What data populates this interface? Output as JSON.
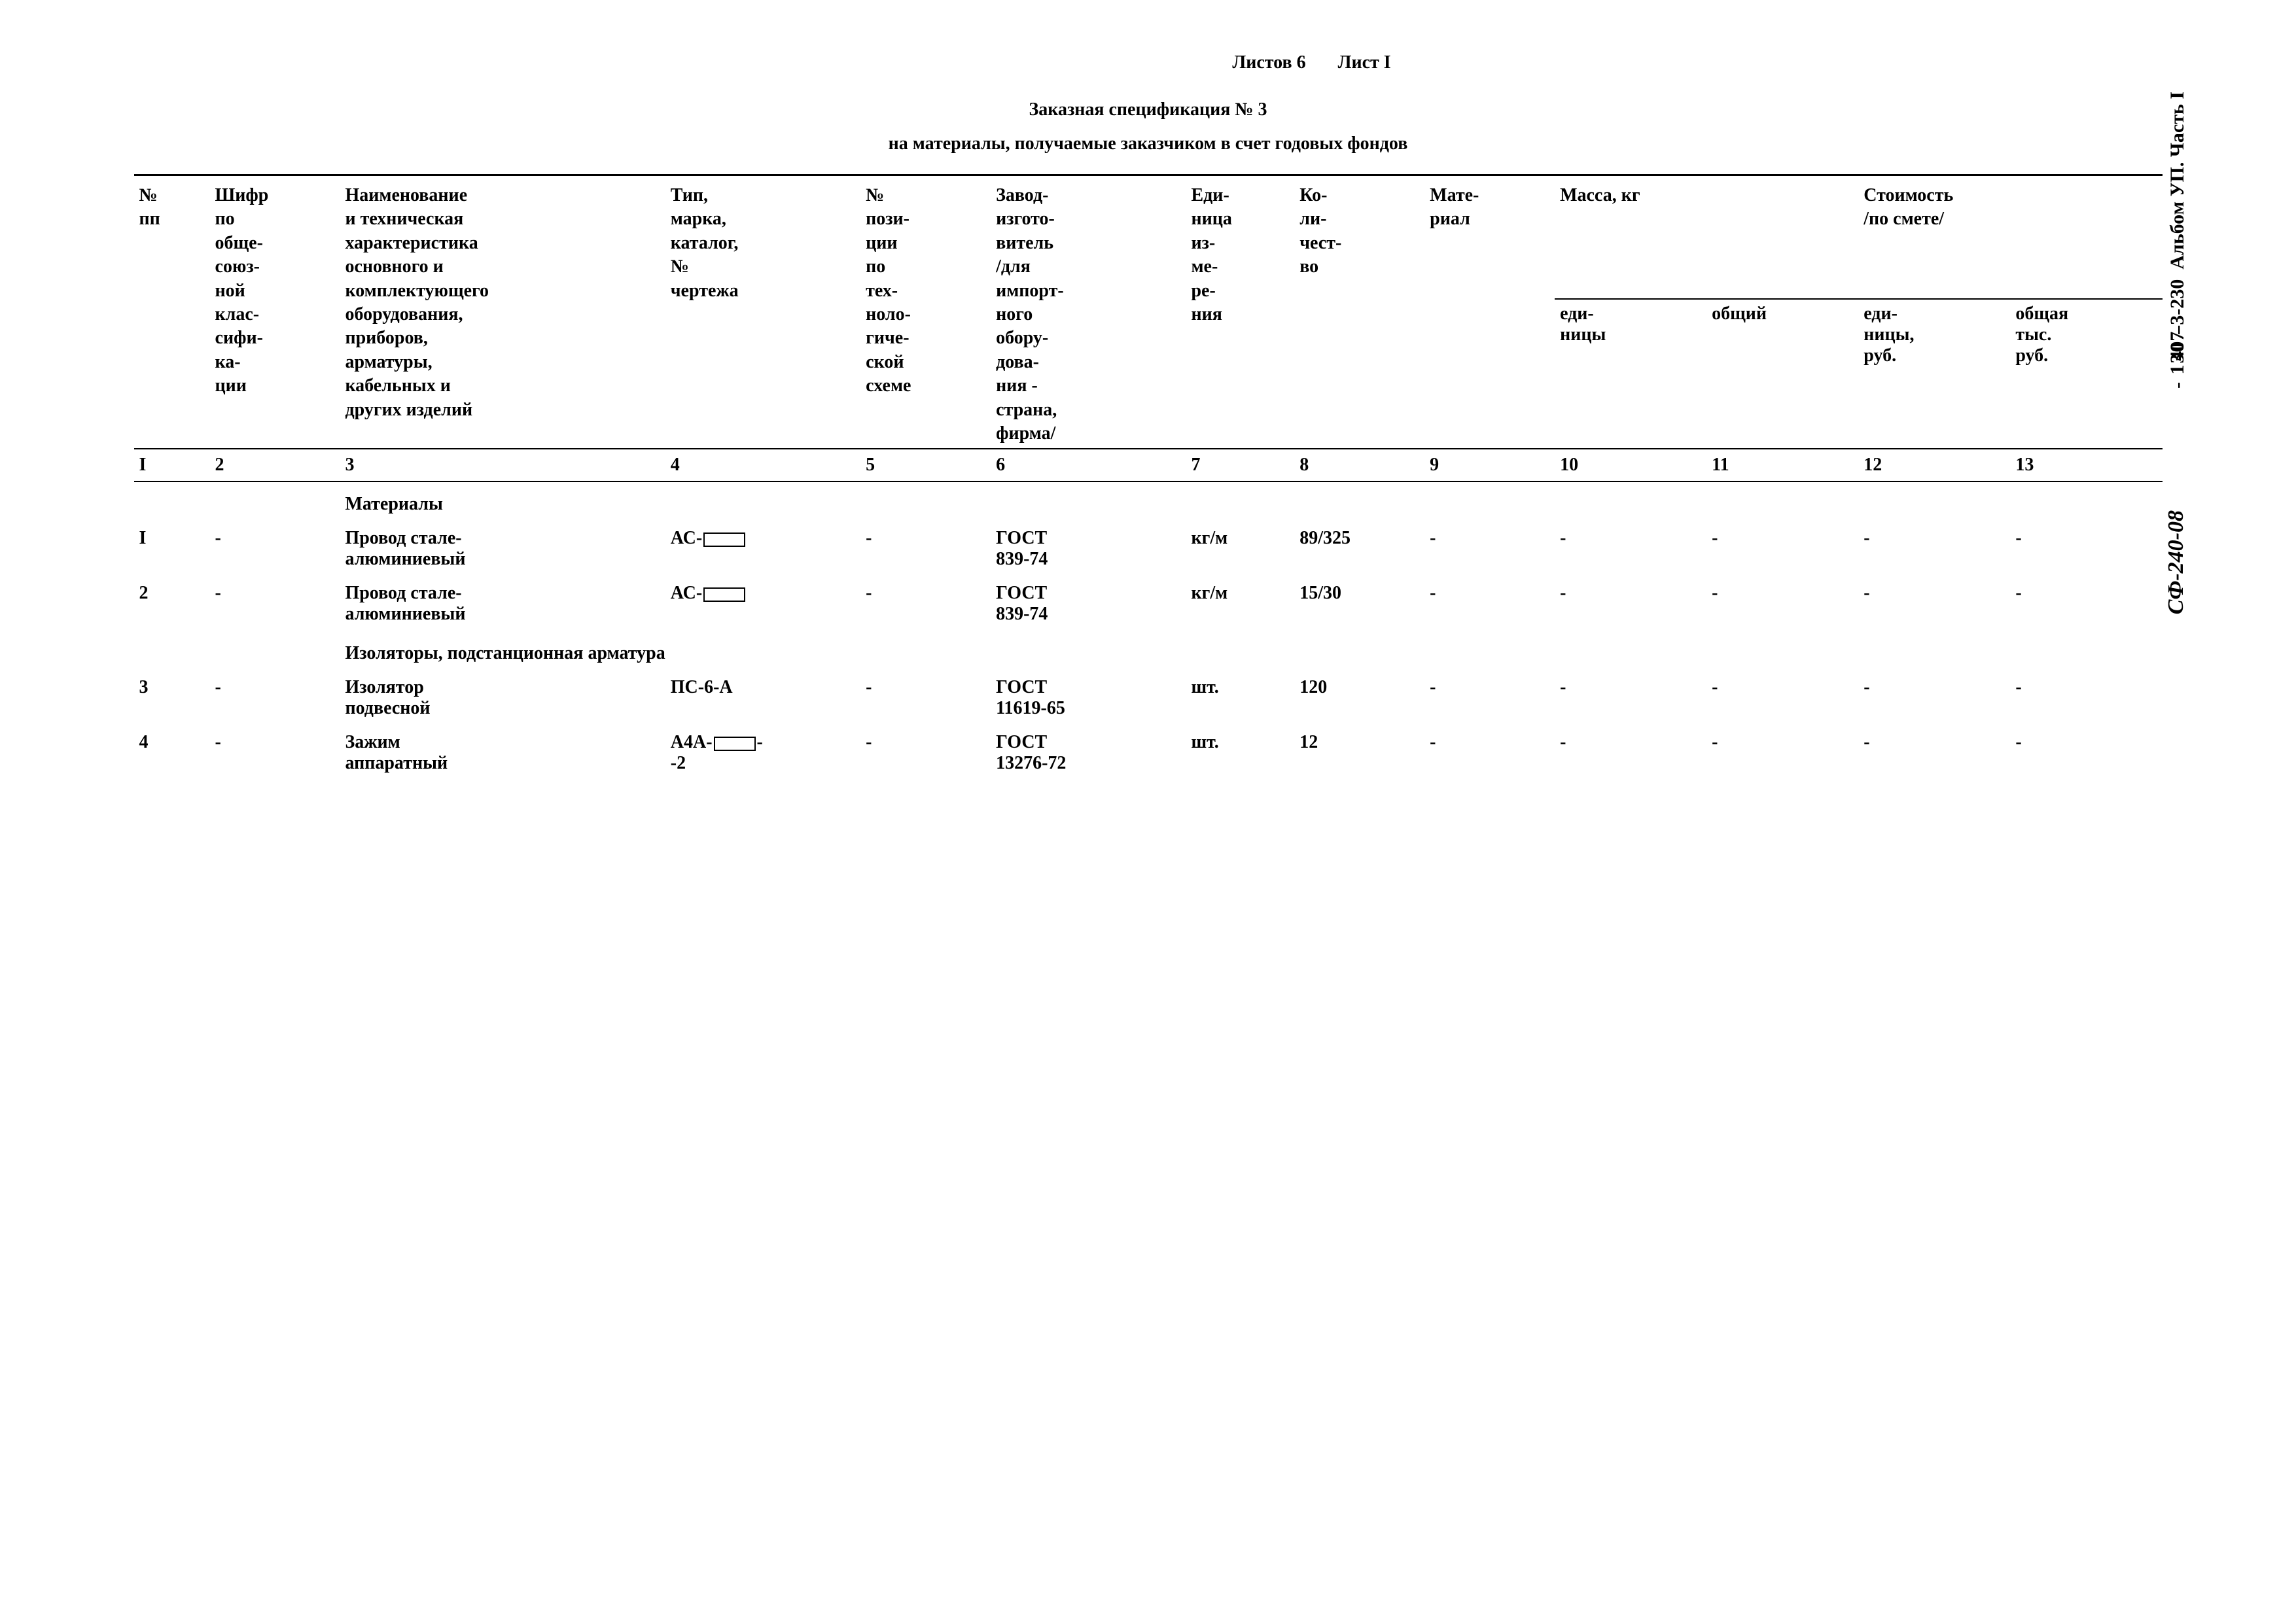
{
  "page_info": {
    "sheets": "Листов 6",
    "sheet": "Лист I"
  },
  "title": "Заказная спецификация № 3",
  "subtitle": "на материалы, получаемые заказчиком в счет годовых фондов",
  "side": {
    "code1": "407-3-230",
    "code2": "Альбом УП. Часть I",
    "pagenum": "- 130 -",
    "code3": "СФ-240-08"
  },
  "headers": {
    "c1": "№\nпп",
    "c2": "Шифр\nпо\nобще-\nсоюз-\nной\nклас-\nсифи-\nка-\nции",
    "c3": "Наименование\nи техническая\nхарактеристика\nосновного и\nкомплектующего\nоборудования,\nприборов,\nарматуры,\nкабельных и\nдругих изделий",
    "c4": "Тип,\nмарка,\nкаталог,\n№\nчертежа",
    "c5": "№\nпози-\nции\nпо\nтех-\nноло-\nгиче-\nской\nсхеме",
    "c6": "Завод-\nизгото-\nвитель\n/для\nимпорт-\nного\nобору-\nдова-\nния -\nстрана,\nфирма/",
    "c7": "Еди-\nница\nиз-\nме-\nре-\nния",
    "c8": "Ко-\nли-\nчест-\nво",
    "c9": "Мате-\nриал",
    "c10_11": "Масса, кг",
    "c10": "еди-\nницы",
    "c11": "общий",
    "c12_13": "Стоимость\n/по смете/",
    "c12": "еди-\nницы,\nруб.",
    "c13": "общая\nтыс.\nруб."
  },
  "colnums": [
    "I",
    "2",
    "3",
    "4",
    "5",
    "6",
    "7",
    "8",
    "9",
    "10",
    "11",
    "12",
    "13"
  ],
  "sections": {
    "materials": "Материалы",
    "insulators": "Изоляторы, подстанционная арматура"
  },
  "rows": [
    {
      "n": "I",
      "code": "-",
      "name": "Провод стале-\nалюминиевый",
      "type": "АС-",
      "type_box": true,
      "pos": "-",
      "gost": "ГОСТ\n839-74",
      "unit": "кг/м",
      "qty": "89/325",
      "mat": "-",
      "m1": "-",
      "m2": "-",
      "s1": "-",
      "s2": "-"
    },
    {
      "n": "2",
      "code": "-",
      "name": "Провод стале-\nалюминиевый",
      "type": "АС-",
      "type_box": true,
      "pos": "-",
      "gost": "ГОСТ\n839-74",
      "unit": "кг/м",
      "qty": "15/30",
      "mat": "-",
      "m1": "-",
      "m2": "-",
      "s1": "-",
      "s2": "-"
    },
    {
      "n": "3",
      "code": "-",
      "name": "Изолятор\nподвесной",
      "type": "ПС-6-А",
      "type_box": false,
      "pos": "-",
      "gost": "ГОСТ\n11619-65",
      "unit": "шт.",
      "qty": "120",
      "mat": "-",
      "m1": "-",
      "m2": "-",
      "s1": "-",
      "s2": "-"
    },
    {
      "n": "4",
      "code": "-",
      "name": "Зажим\nаппаратный",
      "type": "А4А-",
      "type_suffix": "-\n-2",
      "type_box": true,
      "pos": "-",
      "gost": "ГОСТ\n13276-72",
      "unit": "шт.",
      "qty": "12",
      "mat": "-",
      "m1": "-",
      "m2": "-",
      "s1": "-",
      "s2": "-"
    }
  ]
}
